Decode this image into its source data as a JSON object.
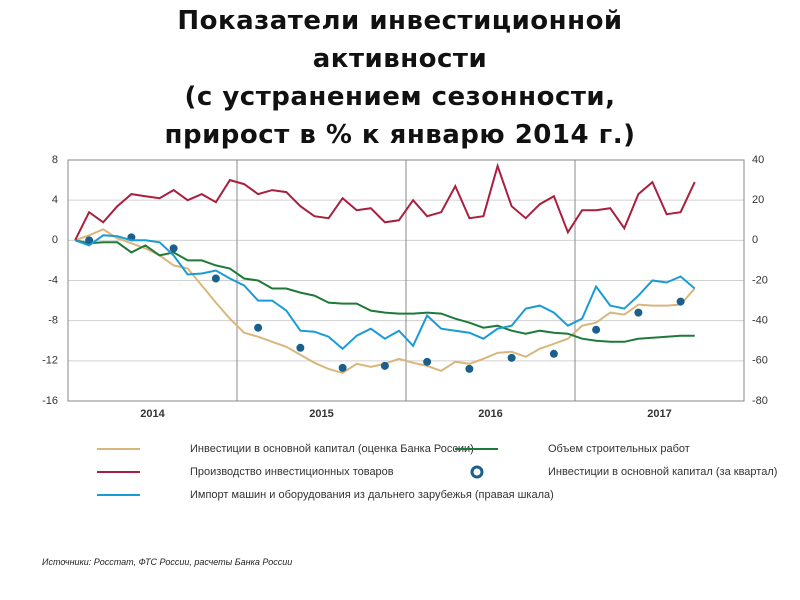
{
  "chart_data": {
    "type": "line",
    "title": "Показатели инвестиционной\nактивности\n(с устранением сезонности,\nприрост в % к январю 2014 г.)",
    "source": "Источники: Росстат, ФТС России, расчеты Банка России",
    "xlim": [
      2014,
      2018
    ],
    "xticks": [
      {
        "value": 2014.5,
        "label": "2014"
      },
      {
        "value": 2015.5,
        "label": "2015"
      },
      {
        "value": 2016.5,
        "label": "2016"
      },
      {
        "value": 2017.5,
        "label": "2017"
      }
    ],
    "ylim": [
      -16,
      8
    ],
    "yticks": [
      8,
      4,
      0,
      -4,
      -8,
      -12,
      -16
    ],
    "y2lim": [
      -80,
      40
    ],
    "y2ticks": [
      40,
      20,
      0,
      -20,
      -40,
      -60,
      -80
    ],
    "grid": true,
    "x": [
      2014.042,
      2014.125,
      2014.208,
      2014.292,
      2014.375,
      2014.458,
      2014.542,
      2014.625,
      2014.708,
      2014.792,
      2014.875,
      2014.958,
      2015.042,
      2015.125,
      2015.208,
      2015.292,
      2015.375,
      2015.458,
      2015.542,
      2015.625,
      2015.708,
      2015.792,
      2015.875,
      2015.958,
      2016.042,
      2016.125,
      2016.208,
      2016.292,
      2016.375,
      2016.458,
      2016.542,
      2016.625,
      2016.708,
      2016.792,
      2016.875,
      2016.958,
      2017.042,
      2017.125,
      2017.208,
      2017.292,
      2017.375,
      2017.458,
      2017.542,
      2017.625,
      2017.708
    ],
    "series": [
      {
        "name": "Инвестиции в основной капитал (оценка Банка России)",
        "color": "#d9b77c",
        "values": [
          0,
          0.5,
          1.1,
          0.2,
          -0.3,
          -0.8,
          -1.5,
          -2.5,
          -2.8,
          -4.5,
          -6.2,
          -7.8,
          -9.2,
          -9.6,
          -10.1,
          -10.6,
          -11.4,
          -12.2,
          -12.8,
          -13.2,
          -12.3,
          -12.6,
          -12.3,
          -11.8,
          -12.2,
          -12.5,
          -13,
          -12.1,
          -12.3,
          -11.8,
          -11.2,
          -11.1,
          -11.6,
          -10.8,
          -10.3,
          -9.8,
          -8.5,
          -8.2,
          -7.2,
          -7.4,
          -6.4,
          -6.5,
          -6.5,
          -6.4,
          -4.8
        ]
      },
      {
        "name": "Объем строительных работ",
        "color": "#1f7a3a",
        "values": [
          0,
          -0.3,
          -0.2,
          -0.2,
          -1.2,
          -0.5,
          -1.5,
          -1.2,
          -2,
          -2,
          -2.5,
          -2.8,
          -3.8,
          -4,
          -4.8,
          -4.8,
          -5.2,
          -5.5,
          -6.2,
          -6.3,
          -6.3,
          -7,
          -7.2,
          -7.3,
          -7.3,
          -7.2,
          -7.3,
          -7.8,
          -8.2,
          -8.7,
          -8.5,
          -9,
          -9.3,
          -9,
          -9.2,
          -9.3,
          -9.8,
          -10,
          -10.1,
          -10.1,
          -9.8,
          -9.7,
          -9.6,
          -9.5,
          -9.5
        ]
      },
      {
        "name": "Производство инвестиционных товаров",
        "color": "#a8203f",
        "values": [
          0,
          2.8,
          1.8,
          3.4,
          4.6,
          4.4,
          4.2,
          5,
          4,
          4.6,
          3.8,
          6,
          5.6,
          4.6,
          5,
          4.8,
          3.4,
          2.4,
          2.2,
          4.2,
          3,
          3.2,
          1.8,
          2,
          4,
          2.4,
          2.8,
          5.4,
          2.2,
          2.4,
          7.4,
          3.4,
          2.2,
          3.6,
          4.4,
          0.8,
          3,
          3,
          3.2,
          1.2,
          4.6,
          5.8,
          2.6,
          2.8,
          5.8
        ]
      },
      {
        "name": "Инвестиции в основной капитал (за квартал)",
        "color": "#1b5f8c",
        "marker": "dot",
        "x": [
          2014.125,
          2014.375,
          2014.625,
          2014.875,
          2015.125,
          2015.375,
          2015.625,
          2015.875,
          2016.125,
          2016.375,
          2016.625,
          2016.875,
          2017.125,
          2017.375,
          2017.625
        ],
        "values": [
          0,
          0.3,
          -0.8,
          -3.8,
          -8.7,
          -10.7,
          -12.7,
          -12.5,
          -12.1,
          -12.8,
          -11.7,
          -11.3,
          -8.9,
          -7.2,
          -6.1
        ]
      },
      {
        "name": "Импорт машин и оборудования из дальнего зарубежья (правая шкала)",
        "color": "#1a9bd7",
        "axis": "y2",
        "values": [
          0,
          -2.5,
          2.5,
          2,
          0,
          0,
          -1,
          -7.5,
          -17,
          -16.5,
          -15,
          -19,
          -22.5,
          -30,
          -30,
          -35,
          -45,
          -45.5,
          -48,
          -54,
          -47.5,
          -44,
          -49,
          -45,
          -52.5,
          -37.5,
          -44,
          -45,
          -46,
          -49,
          -44,
          -42.5,
          -34,
          -32.5,
          -36,
          -42.5,
          -39,
          -23,
          -32.5,
          -34,
          -27.5,
          -20,
          -21,
          -18,
          -24
        ]
      }
    ]
  }
}
